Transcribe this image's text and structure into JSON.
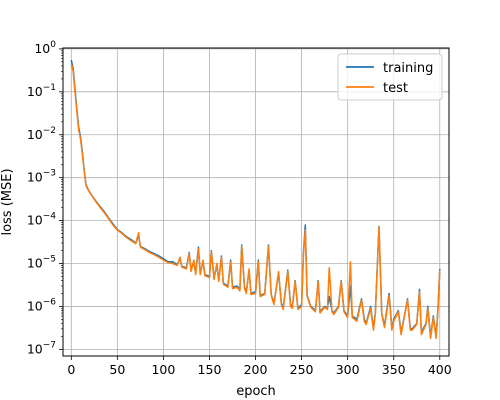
{
  "chart_data": {
    "type": "line",
    "title": "",
    "xlabel": "epoch",
    "ylabel": "loss (MSE)",
    "xlim": [
      -9,
      410
    ],
    "ylim": [
      7e-08,
      1.05
    ],
    "yscale": "log",
    "grid": true,
    "legend_position": "top-right",
    "x_ticks": [
      0,
      50,
      100,
      150,
      200,
      250,
      300,
      350,
      400
    ],
    "x_tick_labels": [
      "0",
      "50",
      "100",
      "150",
      "200",
      "250",
      "300",
      "350",
      "400"
    ],
    "y_ticks": [
      1e-07,
      1e-06,
      1e-05,
      0.0001,
      0.001,
      0.01,
      0.1,
      1
    ],
    "y_tick_labels": [
      {
        "base": "10",
        "exp": "−7"
      },
      {
        "base": "10",
        "exp": "−6"
      },
      {
        "base": "10",
        "exp": "−5"
      },
      {
        "base": "10",
        "exp": "−4"
      },
      {
        "base": "10",
        "exp": "−3"
      },
      {
        "base": "10",
        "exp": "−2"
      },
      {
        "base": "10",
        "exp": "−1"
      },
      {
        "base": "10",
        "exp": "0"
      }
    ],
    "series": [
      {
        "name": "training",
        "color": "#1f77b4",
        "points": [
          [
            0,
            0.55
          ],
          [
            2,
            0.35
          ],
          [
            4,
            0.12
          ],
          [
            6,
            0.04
          ],
          [
            8,
            0.015
          ],
          [
            10,
            0.009
          ],
          [
            12,
            0.004
          ],
          [
            14,
            0.0015
          ],
          [
            16,
            0.00068
          ],
          [
            18,
            0.00055
          ],
          [
            20,
            0.00046
          ],
          [
            25,
            0.00032
          ],
          [
            30,
            0.00023
          ],
          [
            35,
            0.00017
          ],
          [
            40,
            0.00012
          ],
          [
            45,
            8.5e-05
          ],
          [
            50,
            6.2e-05
          ],
          [
            55,
            5.2e-05
          ],
          [
            60,
            4.2e-05
          ],
          [
            65,
            3.6e-05
          ],
          [
            70,
            3e-05
          ],
          [
            73,
            4.5e-05
          ],
          [
            75,
            2.5e-05
          ],
          [
            80,
            2.2e-05
          ],
          [
            85,
            1.9e-05
          ],
          [
            90,
            1.7e-05
          ],
          [
            95,
            1.5e-05
          ],
          [
            100,
            1.3e-05
          ],
          [
            105,
            1.1e-05
          ],
          [
            110,
            1.1e-05
          ],
          [
            115,
            9.5e-06
          ],
          [
            118,
            1.3e-05
          ],
          [
            120,
            8.5e-06
          ],
          [
            125,
            8e-06
          ],
          [
            128,
            1.8e-05
          ],
          [
            130,
            7e-06
          ],
          [
            133,
            1.1e-05
          ],
          [
            135,
            6e-06
          ],
          [
            138,
            2.4e-05
          ],
          [
            140,
            6e-06
          ],
          [
            143,
            1.1e-05
          ],
          [
            145,
            5.5e-06
          ],
          [
            150,
            5e-06
          ],
          [
            152,
            2e-05
          ],
          [
            155,
            4.5e-06
          ],
          [
            158,
            9.5e-06
          ],
          [
            160,
            4e-06
          ],
          [
            163,
            1.5e-05
          ],
          [
            165,
            3.5e-06
          ],
          [
            170,
            3e-06
          ],
          [
            173,
            1.2e-05
          ],
          [
            175,
            2.8e-06
          ],
          [
            180,
            3e-06
          ],
          [
            183,
            2.5e-06
          ],
          [
            185,
            2.7e-05
          ],
          [
            188,
            2.8e-06
          ],
          [
            190,
            2.2e-06
          ],
          [
            193,
            7e-06
          ],
          [
            195,
            2e-06
          ],
          [
            200,
            2.2e-06
          ],
          [
            203,
            1.2e-05
          ],
          [
            205,
            1.8e-06
          ],
          [
            210,
            2e-06
          ],
          [
            214,
            2.7e-05
          ],
          [
            217,
            1.9e-06
          ],
          [
            220,
            1.2e-06
          ],
          [
            225,
            6e-06
          ],
          [
            228,
            1.2e-06
          ],
          [
            230,
            9e-07
          ],
          [
            235,
            7e-06
          ],
          [
            238,
            1.1e-06
          ],
          [
            240,
            1e-06
          ],
          [
            243,
            4e-06
          ],
          [
            246,
            9e-07
          ],
          [
            250,
            1.1e-06
          ],
          [
            252,
            1.8e-05
          ],
          [
            254,
            7.9e-05
          ],
          [
            256,
            1.8e-06
          ],
          [
            260,
            1e-06
          ],
          [
            265,
            8e-07
          ],
          [
            268,
            4e-06
          ],
          [
            270,
            7.5e-07
          ],
          [
            275,
            1e-06
          ],
          [
            278,
            9e-07
          ],
          [
            280,
            1.7e-06
          ],
          [
            283,
            8e-07
          ],
          [
            285,
            7e-07
          ],
          [
            290,
            1e-06
          ],
          [
            293,
            4e-06
          ],
          [
            296,
            8e-07
          ],
          [
            300,
            6e-07
          ],
          [
            303,
            3e-06
          ],
          [
            305,
            6e-07
          ],
          [
            310,
            5e-07
          ],
          [
            315,
            1.5e-06
          ],
          [
            318,
            5e-07
          ],
          [
            320,
            4e-07
          ],
          [
            325,
            1e-06
          ],
          [
            328,
            3e-07
          ],
          [
            330,
            7e-07
          ],
          [
            334,
            7.3e-05
          ],
          [
            337,
            7e-07
          ],
          [
            340,
            3.5e-07
          ],
          [
            345,
            2e-06
          ],
          [
            348,
            3e-07
          ],
          [
            350,
            5e-07
          ],
          [
            355,
            8e-07
          ],
          [
            358,
            2.5e-07
          ],
          [
            360,
            4e-07
          ],
          [
            365,
            1.5e-06
          ],
          [
            368,
            3e-07
          ],
          [
            370,
            3e-07
          ],
          [
            375,
            4e-07
          ],
          [
            378,
            2.5e-06
          ],
          [
            380,
            2.5e-07
          ],
          [
            385,
            4e-07
          ],
          [
            387,
            1e-06
          ],
          [
            390,
            2e-07
          ],
          [
            393,
            6e-07
          ],
          [
            396,
            2e-07
          ],
          [
            398,
            9e-07
          ],
          [
            400,
            7.5e-06
          ]
        ]
      },
      {
        "name": "test",
        "color": "#ff7f0e",
        "points": [
          [
            0,
            0.45
          ],
          [
            2,
            0.3
          ],
          [
            4,
            0.1
          ],
          [
            6,
            0.035
          ],
          [
            8,
            0.013
          ],
          [
            10,
            0.008
          ],
          [
            12,
            0.0035
          ],
          [
            14,
            0.0014
          ],
          [
            16,
            0.00065
          ],
          [
            18,
            0.00053
          ],
          [
            20,
            0.00045
          ],
          [
            25,
            0.00031
          ],
          [
            30,
            0.00022
          ],
          [
            35,
            0.00016
          ],
          [
            40,
            0.000115
          ],
          [
            45,
            8e-05
          ],
          [
            50,
            6e-05
          ],
          [
            55,
            5e-05
          ],
          [
            60,
            4e-05
          ],
          [
            65,
            3.4e-05
          ],
          [
            70,
            2.9e-05
          ],
          [
            73,
            5.2e-05
          ],
          [
            75,
            2.4e-05
          ],
          [
            80,
            2.1e-05
          ],
          [
            85,
            1.8e-05
          ],
          [
            90,
            1.6e-05
          ],
          [
            95,
            1.4e-05
          ],
          [
            100,
            1.2e-05
          ],
          [
            105,
            1.05e-05
          ],
          [
            110,
            1e-05
          ],
          [
            115,
            9e-06
          ],
          [
            118,
            1.4e-05
          ],
          [
            120,
            8.2e-06
          ],
          [
            125,
            7.5e-06
          ],
          [
            128,
            1.7e-05
          ],
          [
            130,
            6.5e-06
          ],
          [
            133,
            1.2e-05
          ],
          [
            135,
            5.5e-06
          ],
          [
            138,
            2.2e-05
          ],
          [
            140,
            5.5e-06
          ],
          [
            143,
            1.2e-05
          ],
          [
            145,
            5.2e-06
          ],
          [
            150,
            4.7e-06
          ],
          [
            152,
            1.9e-05
          ],
          [
            155,
            4.2e-06
          ],
          [
            158,
            1e-05
          ],
          [
            160,
            3.8e-06
          ],
          [
            163,
            1.4e-05
          ],
          [
            165,
            3.3e-06
          ],
          [
            170,
            2.8e-06
          ],
          [
            173,
            1.1e-05
          ],
          [
            175,
            2.6e-06
          ],
          [
            180,
            2.8e-06
          ],
          [
            183,
            2.3e-06
          ],
          [
            185,
            2.5e-05
          ],
          [
            188,
            2.6e-06
          ],
          [
            190,
            2e-06
          ],
          [
            193,
            7.5e-06
          ],
          [
            195,
            1.9e-06
          ],
          [
            200,
            2e-06
          ],
          [
            203,
            1.1e-05
          ],
          [
            205,
            1.7e-06
          ],
          [
            210,
            1.9e-06
          ],
          [
            214,
            2.5e-05
          ],
          [
            217,
            1.8e-06
          ],
          [
            220,
            1.1e-06
          ],
          [
            225,
            6.5e-06
          ],
          [
            228,
            1.1e-06
          ],
          [
            230,
            8.5e-07
          ],
          [
            235,
            6.5e-06
          ],
          [
            238,
            1e-06
          ],
          [
            240,
            9e-07
          ],
          [
            243,
            3.8e-06
          ],
          [
            246,
            8.5e-07
          ],
          [
            250,
            1e-06
          ],
          [
            252,
            1.6e-05
          ],
          [
            254,
            6e-05
          ],
          [
            256,
            1.7e-06
          ],
          [
            260,
            9.5e-07
          ],
          [
            265,
            7.5e-07
          ],
          [
            268,
            3.8e-06
          ],
          [
            270,
            7e-07
          ],
          [
            275,
            9.5e-07
          ],
          [
            278,
            8.5e-07
          ],
          [
            280,
            8e-06
          ],
          [
            283,
            7.5e-07
          ],
          [
            285,
            6.5e-07
          ],
          [
            290,
            9.5e-07
          ],
          [
            293,
            3.8e-06
          ],
          [
            296,
            7.5e-07
          ],
          [
            300,
            5.5e-07
          ],
          [
            303,
            1.1e-05
          ],
          [
            305,
            5.5e-07
          ],
          [
            310,
            4.5e-07
          ],
          [
            315,
            1.4e-06
          ],
          [
            318,
            4.5e-07
          ],
          [
            320,
            3.8e-07
          ],
          [
            325,
            9e-07
          ],
          [
            328,
            2.8e-07
          ],
          [
            330,
            6.5e-07
          ],
          [
            334,
            7e-05
          ],
          [
            337,
            6.5e-07
          ],
          [
            340,
            3.2e-07
          ],
          [
            345,
            1.8e-06
          ],
          [
            348,
            2.8e-07
          ],
          [
            350,
            4.5e-07
          ],
          [
            355,
            7.5e-07
          ],
          [
            358,
            2.2e-07
          ],
          [
            360,
            3.8e-07
          ],
          [
            365,
            1.4e-06
          ],
          [
            368,
            2.8e-07
          ],
          [
            370,
            2.8e-07
          ],
          [
            375,
            3.8e-07
          ],
          [
            378,
            2.2e-06
          ],
          [
            380,
            2.2e-07
          ],
          [
            385,
            3.8e-07
          ],
          [
            387,
            9e-07
          ],
          [
            390,
            1.8e-07
          ],
          [
            393,
            5.5e-07
          ],
          [
            396,
            1.8e-07
          ],
          [
            398,
            8e-07
          ],
          [
            400,
            7e-06
          ]
        ]
      }
    ]
  }
}
